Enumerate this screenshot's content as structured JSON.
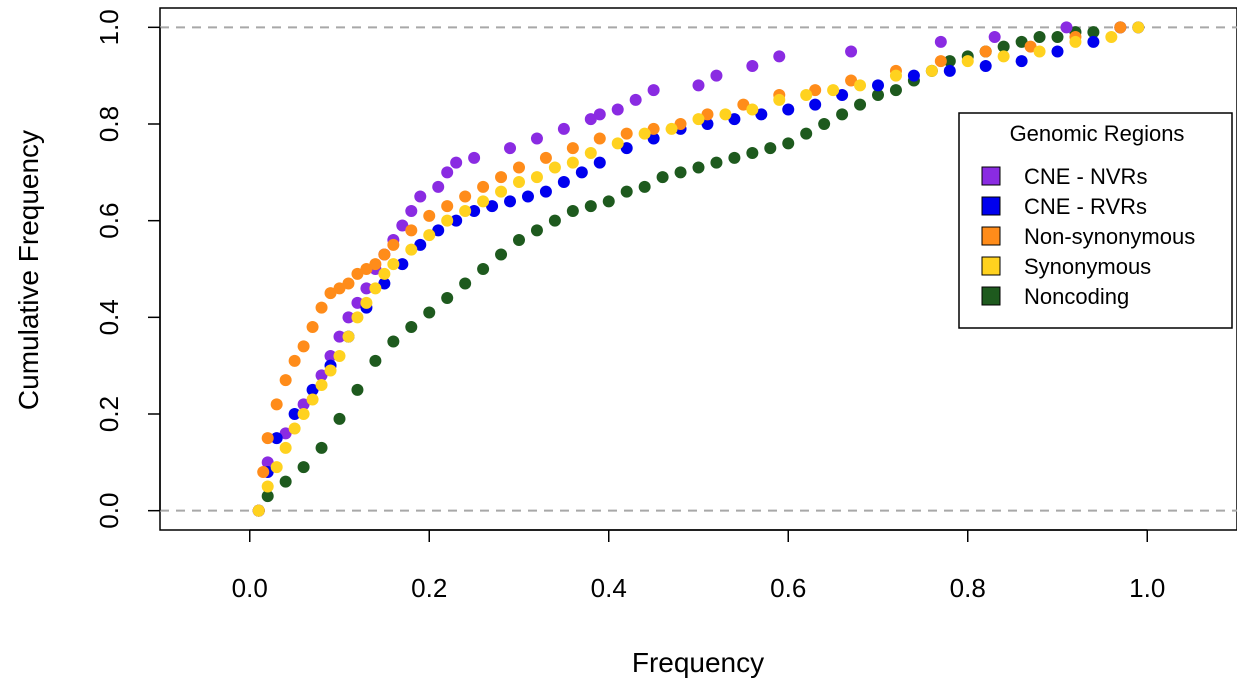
{
  "chart_data": {
    "type": "scatter",
    "title": "",
    "xlabel": "Frequency",
    "ylabel": "Cumulative Frequency",
    "xlim": [
      -0.1,
      1.1
    ],
    "ylim": [
      -0.04,
      1.04
    ],
    "x_ticks": [
      "0.0",
      "0.2",
      "0.4",
      "0.6",
      "0.8",
      "1.0"
    ],
    "y_ticks": [
      "0.0",
      "0.2",
      "0.4",
      "0.6",
      "0.8",
      "1.0"
    ],
    "reference_lines_y": [
      0,
      1
    ],
    "grid": false,
    "legend": {
      "title": "Genomic Regions",
      "position": "right"
    },
    "series": [
      {
        "name": "CNE - NVRs",
        "color": "#8a2be2",
        "x": [
          0.01,
          0.02,
          0.04,
          0.06,
          0.08,
          0.09,
          0.1,
          0.11,
          0.12,
          0.13,
          0.14,
          0.15,
          0.16,
          0.17,
          0.18,
          0.19,
          0.21,
          0.22,
          0.23,
          0.25,
          0.29,
          0.32,
          0.35,
          0.38,
          0.39,
          0.41,
          0.43,
          0.45,
          0.5,
          0.52,
          0.56,
          0.59,
          0.67,
          0.77,
          0.83,
          0.91,
          0.97
        ],
        "y": [
          0.0,
          0.1,
          0.16,
          0.22,
          0.28,
          0.32,
          0.36,
          0.4,
          0.43,
          0.46,
          0.5,
          0.53,
          0.56,
          0.59,
          0.62,
          0.65,
          0.67,
          0.7,
          0.72,
          0.73,
          0.75,
          0.77,
          0.79,
          0.81,
          0.82,
          0.83,
          0.85,
          0.87,
          0.88,
          0.9,
          0.92,
          0.94,
          0.95,
          0.97,
          0.98,
          1.0,
          1.0
        ]
      },
      {
        "name": "CNE - RVRs",
        "color": "#0000ee",
        "x": [
          0.01,
          0.02,
          0.03,
          0.05,
          0.07,
          0.09,
          0.11,
          0.13,
          0.15,
          0.17,
          0.19,
          0.21,
          0.23,
          0.25,
          0.27,
          0.29,
          0.31,
          0.33,
          0.35,
          0.37,
          0.39,
          0.42,
          0.45,
          0.48,
          0.51,
          0.54,
          0.57,
          0.6,
          0.63,
          0.66,
          0.7,
          0.74,
          0.78,
          0.82,
          0.86,
          0.9,
          0.94,
          0.99
        ],
        "y": [
          0.0,
          0.08,
          0.15,
          0.2,
          0.25,
          0.3,
          0.36,
          0.42,
          0.47,
          0.51,
          0.55,
          0.58,
          0.6,
          0.62,
          0.63,
          0.64,
          0.65,
          0.66,
          0.68,
          0.7,
          0.72,
          0.75,
          0.77,
          0.79,
          0.8,
          0.81,
          0.82,
          0.83,
          0.84,
          0.86,
          0.88,
          0.9,
          0.91,
          0.92,
          0.93,
          0.95,
          0.97,
          1.0
        ]
      },
      {
        "name": "Non-synonymous",
        "color": "#ff8c1a",
        "x": [
          0.01,
          0.015,
          0.02,
          0.03,
          0.04,
          0.05,
          0.06,
          0.07,
          0.08,
          0.09,
          0.1,
          0.11,
          0.12,
          0.13,
          0.14,
          0.15,
          0.16,
          0.18,
          0.2,
          0.22,
          0.24,
          0.26,
          0.28,
          0.3,
          0.33,
          0.36,
          0.39,
          0.42,
          0.45,
          0.48,
          0.51,
          0.55,
          0.59,
          0.63,
          0.67,
          0.72,
          0.77,
          0.82,
          0.87,
          0.92,
          0.97
        ],
        "y": [
          0.0,
          0.08,
          0.15,
          0.22,
          0.27,
          0.31,
          0.34,
          0.38,
          0.42,
          0.45,
          0.46,
          0.47,
          0.49,
          0.5,
          0.51,
          0.53,
          0.55,
          0.58,
          0.61,
          0.63,
          0.65,
          0.67,
          0.69,
          0.71,
          0.73,
          0.75,
          0.77,
          0.78,
          0.79,
          0.8,
          0.82,
          0.84,
          0.86,
          0.87,
          0.89,
          0.91,
          0.93,
          0.95,
          0.96,
          0.98,
          1.0
        ]
      },
      {
        "name": "Synonymous",
        "color": "#ffd21f",
        "x": [
          0.01,
          0.02,
          0.03,
          0.04,
          0.05,
          0.06,
          0.07,
          0.08,
          0.09,
          0.1,
          0.11,
          0.12,
          0.13,
          0.14,
          0.15,
          0.16,
          0.18,
          0.2,
          0.22,
          0.24,
          0.26,
          0.28,
          0.3,
          0.32,
          0.34,
          0.36,
          0.38,
          0.41,
          0.44,
          0.47,
          0.5,
          0.53,
          0.56,
          0.59,
          0.62,
          0.65,
          0.68,
          0.72,
          0.76,
          0.8,
          0.84,
          0.88,
          0.92,
          0.96,
          0.99
        ],
        "y": [
          0.0,
          0.05,
          0.09,
          0.13,
          0.17,
          0.2,
          0.23,
          0.26,
          0.29,
          0.32,
          0.36,
          0.4,
          0.43,
          0.46,
          0.49,
          0.51,
          0.54,
          0.57,
          0.6,
          0.62,
          0.64,
          0.66,
          0.68,
          0.69,
          0.71,
          0.72,
          0.74,
          0.76,
          0.78,
          0.79,
          0.81,
          0.82,
          0.83,
          0.85,
          0.86,
          0.87,
          0.88,
          0.9,
          0.91,
          0.93,
          0.94,
          0.95,
          0.97,
          0.98,
          1.0
        ]
      },
      {
        "name": "Noncoding",
        "color": "#1e5a1e",
        "x": [
          0.01,
          0.02,
          0.04,
          0.06,
          0.08,
          0.1,
          0.12,
          0.14,
          0.16,
          0.18,
          0.2,
          0.22,
          0.24,
          0.26,
          0.28,
          0.3,
          0.32,
          0.34,
          0.36,
          0.38,
          0.4,
          0.42,
          0.44,
          0.46,
          0.48,
          0.5,
          0.52,
          0.54,
          0.56,
          0.58,
          0.6,
          0.62,
          0.64,
          0.66,
          0.68,
          0.7,
          0.72,
          0.74,
          0.76,
          0.78,
          0.8,
          0.82,
          0.84,
          0.86,
          0.88,
          0.9,
          0.92,
          0.94,
          0.97
        ],
        "y": [
          0.0,
          0.03,
          0.06,
          0.09,
          0.13,
          0.19,
          0.25,
          0.31,
          0.35,
          0.38,
          0.41,
          0.44,
          0.47,
          0.5,
          0.53,
          0.56,
          0.58,
          0.6,
          0.62,
          0.63,
          0.64,
          0.66,
          0.67,
          0.69,
          0.7,
          0.71,
          0.72,
          0.73,
          0.74,
          0.75,
          0.76,
          0.78,
          0.8,
          0.82,
          0.84,
          0.86,
          0.87,
          0.89,
          0.91,
          0.93,
          0.94,
          0.95,
          0.96,
          0.97,
          0.98,
          0.98,
          0.99,
          0.99,
          1.0
        ]
      }
    ]
  }
}
